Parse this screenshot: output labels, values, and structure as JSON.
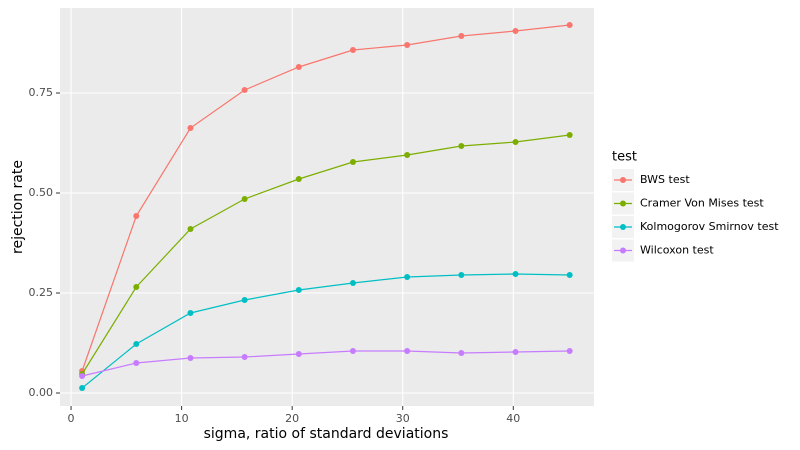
{
  "chart_data": {
    "type": "line",
    "x_label": "sigma, ratio of standard deviations",
    "y_label": "rejection rate",
    "legend_title": "test",
    "legend_position": "right",
    "grid": true,
    "x": [
      1,
      5.9,
      10.8,
      15.7,
      20.6,
      25.5,
      30.4,
      35.3,
      40.2,
      45.1
    ],
    "series": [
      {
        "name": "BWS test",
        "color": "#F8766D",
        "values": [
          0.055,
          0.4425,
          0.6625,
          0.7575,
          0.815,
          0.8575,
          0.87,
          0.8925,
          0.905,
          0.92
        ]
      },
      {
        "name": "Cramer Von Mises test",
        "color": "#7CAE00",
        "values": [
          0.0475,
          0.265,
          0.41,
          0.485,
          0.535,
          0.5775,
          0.595,
          0.6175,
          0.6275,
          0.645
        ]
      },
      {
        "name": "Kolmogorov Smirnov test",
        "color": "#00BFC4",
        "values": [
          0.0125,
          0.1225,
          0.2,
          0.2325,
          0.2575,
          0.275,
          0.29,
          0.295,
          0.2975,
          0.295
        ]
      },
      {
        "name": "Wilcoxon test",
        "color": "#C77CFF",
        "values": [
          0.0425,
          0.075,
          0.0875,
          0.09,
          0.0975,
          0.105,
          0.105,
          0.1,
          0.1025,
          0.105
        ]
      }
    ],
    "xlim": [
      -1.0,
      47.3
    ],
    "ylim": [
      -0.0325,
      0.9625
    ],
    "xticks": [
      0,
      10,
      20,
      30,
      40
    ],
    "yticks": [
      {
        "value": 0,
        "label": "0.00"
      },
      {
        "value": 0.25,
        "label": "0.25"
      },
      {
        "value": 0.5,
        "label": "0.50"
      },
      {
        "value": 0.75,
        "label": "0.75"
      }
    ]
  }
}
